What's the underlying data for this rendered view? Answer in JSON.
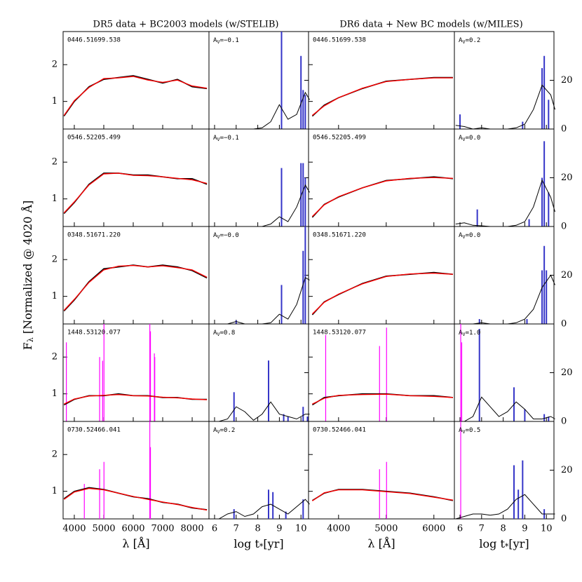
{
  "chart_data": {
    "type": "spectral-fit-grid",
    "ylabel": {
      "symbol": "F",
      "subscript": "λ",
      "unit": " [Normalized @ 4020 Å]"
    },
    "age_xlabel": {
      "text": "log t",
      "subscript": "*",
      "unit": "[yr]"
    },
    "av_symbol": "A",
    "av_subscript": "V",
    "colors": {
      "data": "#000000",
      "model": "#ff0000",
      "flagged": "#ff00ff",
      "bars": "#3535c8",
      "curve": "#000000"
    },
    "spec_ylim": [
      0.25,
      2.9
    ],
    "spec_yticks": [
      1,
      2
    ],
    "age_xlim": [
      5.74,
      10.35
    ],
    "age_xticks": [
      6,
      7,
      8,
      9,
      10
    ],
    "age_ylim": [
      0,
      40
    ],
    "age_yticks": [
      0,
      20
    ],
    "age_x": [
      5.8,
      6.2,
      6.6,
      7.0,
      7.4,
      7.8,
      8.2,
      8.6,
      9.0,
      9.4,
      9.8,
      10.2,
      10.4
    ],
    "sides": {
      "left": {
        "title": "DR5 data + BC2003 models (w/STELIB)",
        "spec_xlabel": "λ [Å]",
        "spec_xlim": [
          3620,
          8570
        ],
        "spec_xticks": [
          4000,
          5000,
          6000,
          7000,
          8000
        ],
        "spec_x": [
          3650,
          4000,
          4500,
          5000,
          5500,
          6000,
          6500,
          7000,
          7500,
          8000,
          8500
        ]
      },
      "right": {
        "title": "DR6 data + New BC models (w/MILES)",
        "spec_xlabel": "λ [Å]",
        "spec_xlim": [
          3370,
          6430
        ],
        "spec_xticks": [
          4000,
          5000,
          6000
        ],
        "spec_x": [
          3450,
          3700,
          4000,
          4500,
          5000,
          5500,
          6000,
          6400
        ]
      }
    },
    "rows": [
      {
        "left": {
          "id": "0446.51699.538",
          "av": "=−0.1",
          "data": [
            0.6,
            1.0,
            1.4,
            1.6,
            1.65,
            1.7,
            1.6,
            1.5,
            1.6,
            1.4,
            1.35
          ],
          "model": [
            0.62,
            1.02,
            1.38,
            1.62,
            1.64,
            1.68,
            1.58,
            1.52,
            1.58,
            1.42,
            1.36
          ],
          "bars": {
            "x": [
              9.1,
              10.0,
              10.1,
              10.2
            ],
            "values": [
              40,
              30,
              16,
              14
            ]
          },
          "curve": [
            0,
            0,
            0,
            0,
            0,
            0,
            0.5,
            3,
            10,
            4,
            6,
            15,
            12
          ]
        },
        "right": {
          "id": "0446.51699.538",
          "av": "=0.2",
          "data": [
            0.6,
            0.9,
            1.1,
            1.35,
            1.55,
            1.6,
            1.65,
            1.65
          ],
          "model": [
            0.62,
            0.88,
            1.1,
            1.36,
            1.54,
            1.6,
            1.64,
            1.64
          ],
          "bars": {
            "x": [
              6.0,
              8.9,
              9.8,
              9.9,
              10.1
            ],
            "values": [
              6,
              3,
              25,
              30,
              12
            ]
          },
          "curve": [
            1.5,
            1,
            0,
            0.5,
            0,
            0,
            0,
            0.5,
            2,
            8,
            18,
            14,
            8
          ]
        }
      },
      {
        "left": {
          "id": "0546.52205.499",
          "av": "=−0.1",
          "data": [
            0.6,
            0.9,
            1.4,
            1.7,
            1.7,
            1.65,
            1.65,
            1.6,
            1.55,
            1.55,
            1.4
          ],
          "model": [
            0.62,
            0.92,
            1.38,
            1.68,
            1.7,
            1.64,
            1.63,
            1.6,
            1.56,
            1.52,
            1.42
          ],
          "bars": {
            "x": [
              9.1,
              10.0,
              10.1,
              10.2
            ],
            "values": [
              24,
              26,
              26,
              20
            ]
          },
          "curve": [
            0,
            0,
            0,
            0,
            0,
            0,
            0,
            1,
            4,
            2,
            8,
            17,
            14
          ]
        },
        "right": {
          "id": "0546.52205.499",
          "av": "=0.0",
          "data": [
            0.5,
            0.85,
            1.05,
            1.3,
            1.5,
            1.55,
            1.6,
            1.55
          ],
          "model": [
            0.52,
            0.84,
            1.06,
            1.3,
            1.49,
            1.56,
            1.58,
            1.56
          ],
          "bars": {
            "x": [
              6.8,
              9.2,
              9.8,
              9.9,
              10.1
            ],
            "values": [
              7,
              3,
              20,
              35,
              14
            ]
          },
          "curve": [
            1,
            1.5,
            0.5,
            0.3,
            0,
            0,
            0,
            0.5,
            2,
            8,
            19,
            12,
            6
          ]
        }
      },
      {
        "left": {
          "id": "0348.51671.220",
          "av": "=−0.0",
          "data": [
            0.6,
            0.9,
            1.4,
            1.75,
            1.8,
            1.85,
            1.8,
            1.85,
            1.8,
            1.7,
            1.5
          ],
          "model": [
            0.62,
            0.92,
            1.38,
            1.72,
            1.82,
            1.84,
            1.8,
            1.83,
            1.78,
            1.72,
            1.52
          ],
          "bars": {
            "x": [
              7.0,
              9.1,
              10.1,
              10.2
            ],
            "values": [
              1.5,
              16,
              30,
              40
            ]
          },
          "curve": [
            0,
            0,
            0,
            1,
            0,
            0,
            0,
            0.5,
            4,
            2,
            8,
            19,
            18
          ]
        },
        "right": {
          "id": "0348.51671.220",
          "av": "=0.0",
          "data": [
            0.5,
            0.85,
            1.05,
            1.35,
            1.55,
            1.6,
            1.65,
            1.6
          ],
          "model": [
            0.52,
            0.84,
            1.06,
            1.34,
            1.54,
            1.61,
            1.63,
            1.6
          ],
          "bars": {
            "x": [
              6.9,
              9.1,
              9.8,
              9.9,
              10.0
            ],
            "values": [
              2,
              2,
              22,
              32,
              22
            ]
          },
          "curve": [
            0,
            0,
            0,
            0.5,
            0,
            0,
            0,
            0.5,
            2,
            6,
            15,
            20,
            16
          ]
        }
      },
      {
        "left": {
          "id": "1448.53120.077",
          "av": "=0.8",
          "data": [
            0.7,
            0.85,
            0.95,
            0.95,
            1.0,
            0.95,
            0.95,
            0.9,
            0.9,
            0.85,
            0.85
          ],
          "model": [
            0.72,
            0.86,
            0.94,
            0.96,
            0.98,
            0.95,
            0.94,
            0.91,
            0.89,
            0.86,
            0.84
          ],
          "flagged": {
            "x": [
              3730,
              4860,
              4960,
              5007,
              6563,
              6584,
              6717,
              6731
            ],
            "values": [
              2.4,
              2.0,
              1.9,
              2.9,
              2.9,
              2.7,
              2.1,
              2.0
            ]
          },
          "bars": {
            "x": [
              6.9,
              8.5,
              9.2,
              9.4,
              10.1,
              10.3
            ],
            "values": [
              12,
              25,
              3,
              2,
              6,
              2
            ]
          },
          "curve": [
            0,
            0,
            1,
            6,
            4,
            0.5,
            3,
            8,
            3,
            2,
            1,
            3,
            3
          ]
        },
        "right": {
          "id": "1448.53120.077",
          "av": "=1.0",
          "data": [
            0.7,
            0.9,
            0.95,
            1.0,
            1.0,
            0.95,
            0.95,
            0.9
          ],
          "model": [
            0.72,
            0.88,
            0.96,
            0.98,
            0.99,
            0.95,
            0.93,
            0.9
          ],
          "flagged": {
            "x": [
              3730,
              4860,
              5007,
              6563,
              6584
            ],
            "values": [
              2.6,
              2.3,
              2.8,
              2.9,
              2.4
            ]
          },
          "bars": {
            "x": [
              6.9,
              8.5,
              9.0,
              9.9,
              10.1
            ],
            "values": [
              38,
              14,
              5,
              3,
              2
            ]
          },
          "curve": [
            0,
            0,
            2,
            10,
            6,
            2,
            4,
            8,
            5,
            1,
            1,
            2,
            1
          ]
        }
      },
      {
        "left": {
          "id": "0730.52466.041",
          "av": "=0.2",
          "data": [
            0.8,
            1.0,
            1.1,
            1.05,
            0.95,
            0.85,
            0.8,
            0.7,
            0.65,
            0.55,
            0.5
          ],
          "model": [
            0.78,
            0.98,
            1.08,
            1.04,
            0.95,
            0.86,
            0.78,
            0.71,
            0.64,
            0.56,
            0.49
          ],
          "flagged": {
            "x": [
              4340,
              4860,
              5007,
              6563,
              6584
            ],
            "values": [
              1.2,
              1.6,
              1.8,
              2.9,
              2.2
            ]
          },
          "bars": {
            "x": [
              6.9,
              8.5,
              8.7,
              9.3,
              10.1
            ],
            "values": [
              4,
              12,
              11,
              3,
              8
            ]
          },
          "curve": [
            0,
            0,
            2,
            3,
            1,
            2,
            5,
            6,
            4,
            2,
            5,
            8,
            6
          ]
        },
        "right": {
          "id": "0730.52466.041",
          "av": "=0.5",
          "data": [
            0.75,
            0.95,
            1.05,
            1.05,
            1.0,
            0.95,
            0.85,
            0.75
          ],
          "model": [
            0.74,
            0.96,
            1.04,
            1.04,
            0.99,
            0.94,
            0.84,
            0.76
          ],
          "flagged": {
            "x": [
              4860,
              5007,
              6563
            ],
            "values": [
              1.6,
              1.8,
              2.9
            ]
          },
          "bars": {
            "x": [
              8.5,
              8.7,
              8.9,
              9.9
            ],
            "values": [
              22,
              12,
              24,
              4
            ]
          },
          "curve": [
            0,
            1,
            2,
            2,
            1.5,
            2,
            4,
            8,
            10,
            6,
            2,
            2,
            2
          ]
        }
      }
    ]
  }
}
